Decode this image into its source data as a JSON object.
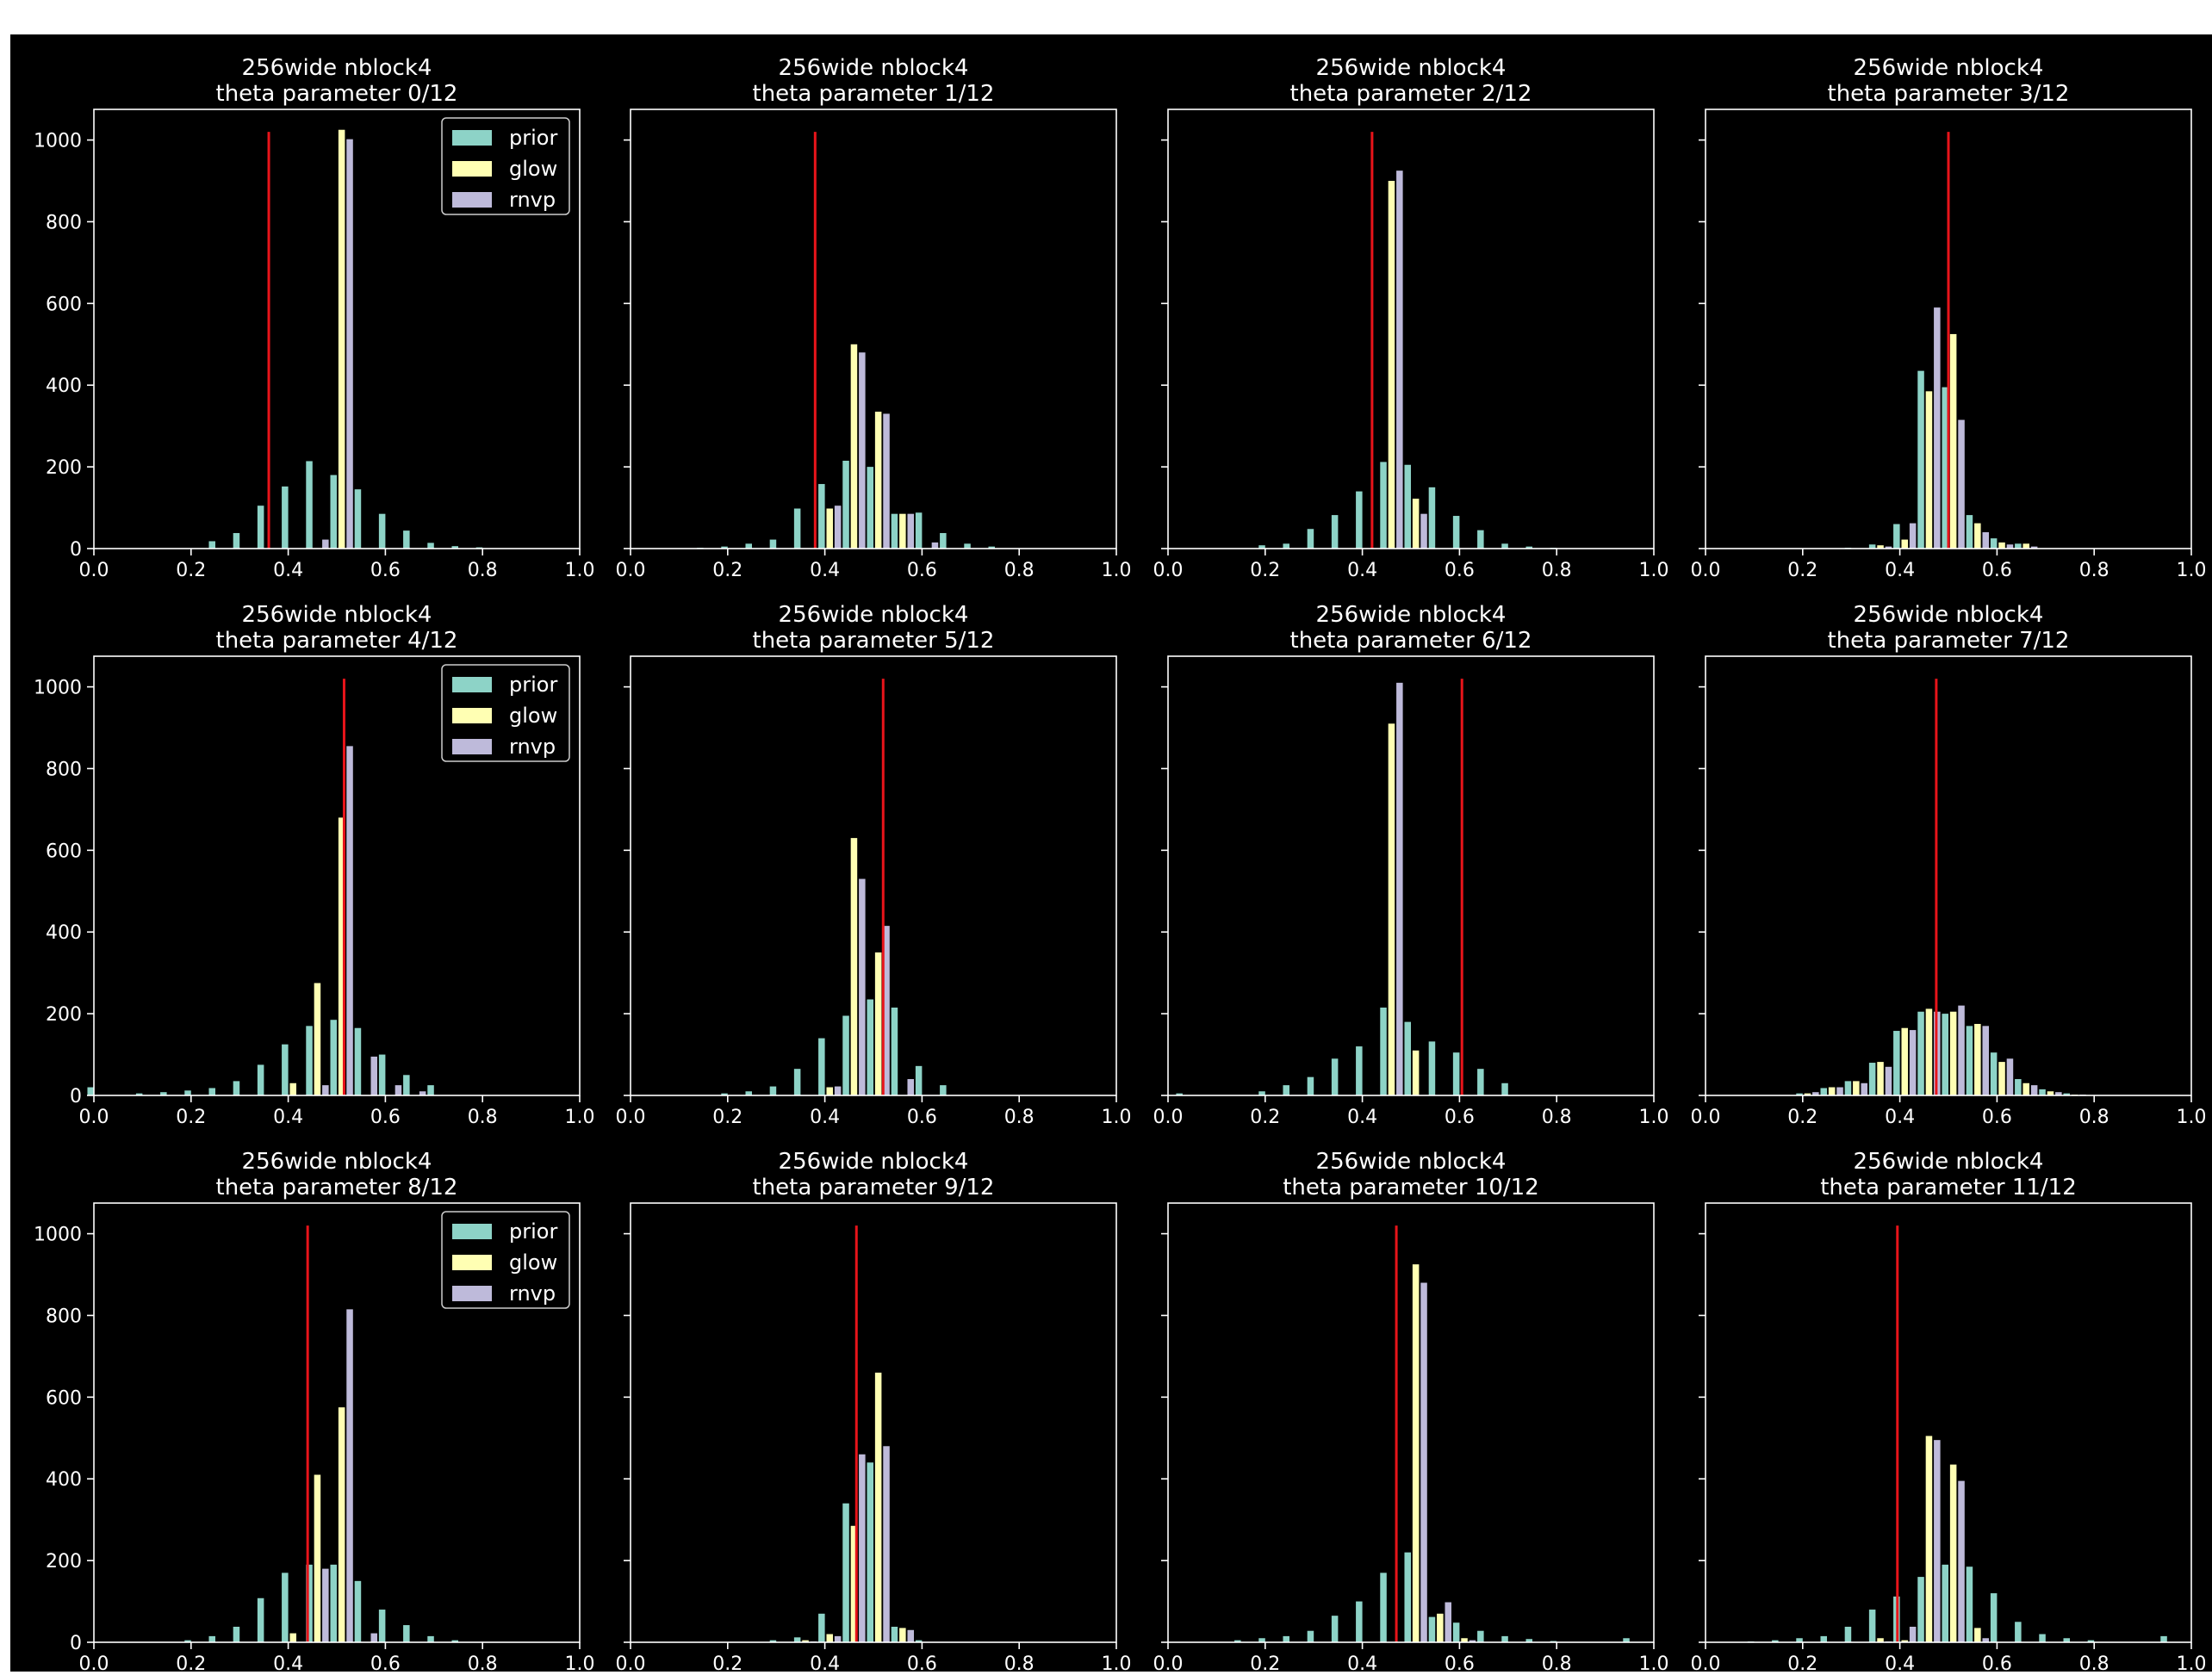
{
  "colors": {
    "background": "#000000",
    "page": "#ffffff",
    "axis": "#ffffff",
    "prior": "#8dd3c7",
    "glow": "#ffffb3",
    "rnvp": "#bebada",
    "truth_line": "#e8141a"
  },
  "chart_data": [
    {
      "type": "bar",
      "title": "256wide nblock4",
      "subtitle": "theta parameter 0/12",
      "xlim": [
        0,
        1
      ],
      "ylim": [
        0,
        1075
      ],
      "xticks": [
        "0.0",
        "0.2",
        "0.4",
        "0.6",
        "0.8",
        "1.0"
      ],
      "yticks": [
        "0",
        "200",
        "400",
        "600",
        "800",
        "1000"
      ],
      "legend": [
        "prior",
        "glow",
        "rnvp"
      ],
      "legend_position": "top-right",
      "truth": 0.36,
      "x": [
        0.26,
        0.31,
        0.36,
        0.41,
        0.46,
        0.51,
        0.56,
        0.61,
        0.66,
        0.71,
        0.76,
        0.81
      ],
      "series": [
        {
          "name": "prior",
          "values": [
            18,
            38,
            105,
            152,
            214,
            180,
            145,
            85,
            44,
            14,
            6,
            3
          ]
        },
        {
          "name": "glow",
          "values": [
            0,
            0,
            0,
            0,
            0,
            1025,
            0,
            0,
            0,
            0,
            0,
            0
          ]
        },
        {
          "name": "rnvp",
          "values": [
            0,
            0,
            0,
            0,
            22,
            1002,
            0,
            0,
            0,
            0,
            0,
            0
          ]
        }
      ]
    },
    {
      "type": "bar",
      "title": "256wide nblock4",
      "subtitle": "theta parameter 1/12",
      "xlim": [
        0,
        1
      ],
      "ylim": [
        0,
        1075
      ],
      "xticks": [
        "0.0",
        "0.2",
        "0.4",
        "0.6",
        "0.8",
        "1.0"
      ],
      "yticks": [
        "0",
        "200",
        "400",
        "600",
        "800",
        "1000"
      ],
      "truth": 0.38,
      "x": [
        0.16,
        0.21,
        0.26,
        0.31,
        0.36,
        0.41,
        0.46,
        0.51,
        0.56,
        0.61,
        0.66,
        0.71,
        0.76
      ],
      "series": [
        {
          "name": "prior",
          "values": [
            2,
            5,
            12,
            22,
            98,
            158,
            215,
            200,
            85,
            88,
            38,
            12,
            5
          ]
        },
        {
          "name": "glow",
          "values": [
            0,
            0,
            0,
            0,
            0,
            98,
            500,
            335,
            85,
            0,
            0,
            0,
            0
          ]
        },
        {
          "name": "rnvp",
          "values": [
            0,
            0,
            0,
            0,
            0,
            105,
            480,
            330,
            85,
            15,
            0,
            0,
            0
          ]
        }
      ]
    },
    {
      "type": "bar",
      "title": "256wide nblock4",
      "subtitle": "theta parameter 2/12",
      "xlim": [
        0,
        1
      ],
      "ylim": [
        0,
        1075
      ],
      "xticks": [
        "0.0",
        "0.2",
        "0.4",
        "0.6",
        "0.8",
        "1.0"
      ],
      "yticks": [
        "0",
        "200",
        "400",
        "600",
        "800",
        "1000"
      ],
      "truth": 0.42,
      "x": [
        0.21,
        0.26,
        0.31,
        0.36,
        0.41,
        0.46,
        0.51,
        0.56,
        0.61,
        0.66,
        0.71,
        0.76,
        0.81
      ],
      "series": [
        {
          "name": "prior",
          "values": [
            8,
            12,
            48,
            82,
            140,
            212,
            205,
            150,
            80,
            45,
            12,
            5,
            2
          ]
        },
        {
          "name": "glow",
          "values": [
            0,
            0,
            0,
            0,
            0,
            900,
            122,
            0,
            0,
            0,
            0,
            0,
            0
          ]
        },
        {
          "name": "rnvp",
          "values": [
            0,
            0,
            0,
            0,
            0,
            925,
            85,
            0,
            0,
            0,
            0,
            0,
            0
          ]
        }
      ]
    },
    {
      "type": "bar",
      "title": "256wide nblock4",
      "subtitle": "theta parameter 3/12",
      "xlim": [
        0,
        1
      ],
      "ylim": [
        0,
        1075
      ],
      "xticks": [
        "0.0",
        "0.2",
        "0.4",
        "0.6",
        "0.8",
        "1.0"
      ],
      "yticks": [
        "0",
        "200",
        "400",
        "600",
        "800",
        "1000"
      ],
      "truth": 0.5,
      "x": [
        0.31,
        0.36,
        0.41,
        0.46,
        0.51,
        0.56,
        0.61,
        0.66
      ],
      "series": [
        {
          "name": "prior",
          "values": [
            2,
            10,
            60,
            435,
            395,
            82,
            25,
            12
          ]
        },
        {
          "name": "glow",
          "values": [
            0,
            8,
            22,
            385,
            525,
            62,
            15,
            12
          ]
        },
        {
          "name": "rnvp",
          "values": [
            0,
            5,
            62,
            590,
            315,
            40,
            10,
            5
          ]
        }
      ]
    },
    {
      "type": "bar",
      "title": "256wide nblock4",
      "subtitle": "theta parameter 4/12",
      "xlim": [
        0,
        1
      ],
      "ylim": [
        0,
        1075
      ],
      "xticks": [
        "0.0",
        "0.2",
        "0.4",
        "0.6",
        "0.8",
        "1.0"
      ],
      "yticks": [
        "0",
        "200",
        "400",
        "600",
        "800",
        "1000"
      ],
      "legend": [
        "prior",
        "glow",
        "rnvp"
      ],
      "legend_position": "top-right",
      "truth": 0.515,
      "x": [
        0.01,
        0.11,
        0.16,
        0.21,
        0.26,
        0.31,
        0.36,
        0.41,
        0.46,
        0.51,
        0.56,
        0.61,
        0.66,
        0.71
      ],
      "series": [
        {
          "name": "prior",
          "values": [
            20,
            5,
            8,
            12,
            18,
            35,
            75,
            125,
            170,
            185,
            165,
            100,
            50,
            25
          ]
        },
        {
          "name": "glow",
          "values": [
            0,
            0,
            0,
            0,
            0,
            0,
            0,
            30,
            275,
            680,
            0,
            0,
            0,
            0
          ]
        },
        {
          "name": "rnvp",
          "values": [
            0,
            0,
            0,
            0,
            0,
            0,
            0,
            0,
            25,
            855,
            95,
            25,
            10,
            0
          ]
        }
      ]
    },
    {
      "type": "bar",
      "title": "256wide nblock4",
      "subtitle": "theta parameter 5/12",
      "xlim": [
        0,
        1
      ],
      "ylim": [
        0,
        1075
      ],
      "xticks": [
        "0.0",
        "0.2",
        "0.4",
        "0.6",
        "0.8",
        "1.0"
      ],
      "yticks": [
        "0",
        "200",
        "400",
        "600",
        "800",
        "1000"
      ],
      "truth": 0.52,
      "x": [
        0.21,
        0.26,
        0.31,
        0.36,
        0.41,
        0.46,
        0.51,
        0.56,
        0.61,
        0.66
      ],
      "series": [
        {
          "name": "prior",
          "values": [
            5,
            10,
            22,
            65,
            140,
            195,
            235,
            215,
            72,
            25
          ]
        },
        {
          "name": "glow",
          "values": [
            0,
            0,
            0,
            0,
            20,
            630,
            350,
            0,
            0,
            0
          ]
        },
        {
          "name": "rnvp",
          "values": [
            0,
            0,
            0,
            0,
            22,
            530,
            415,
            40,
            0,
            0
          ]
        }
      ]
    },
    {
      "type": "bar",
      "title": "256wide nblock4",
      "subtitle": "theta parameter 6/12",
      "xlim": [
        0,
        1
      ],
      "ylim": [
        0,
        1075
      ],
      "xticks": [
        "0.0",
        "0.2",
        "0.4",
        "0.6",
        "0.8",
        "1.0"
      ],
      "yticks": [
        "0",
        "200",
        "400",
        "600",
        "800",
        "1000"
      ],
      "truth": 0.605,
      "x": [
        0.04,
        0.21,
        0.26,
        0.31,
        0.36,
        0.41,
        0.46,
        0.51,
        0.56,
        0.61,
        0.66,
        0.71
      ],
      "series": [
        {
          "name": "prior",
          "values": [
            5,
            10,
            25,
            45,
            90,
            120,
            215,
            180,
            132,
            105,
            65,
            30
          ]
        },
        {
          "name": "glow",
          "values": [
            0,
            0,
            0,
            0,
            0,
            0,
            910,
            110,
            0,
            0,
            0,
            0
          ]
        },
        {
          "name": "rnvp",
          "values": [
            0,
            0,
            0,
            0,
            0,
            0,
            1010,
            0,
            0,
            0,
            0,
            0
          ]
        }
      ]
    },
    {
      "type": "bar",
      "title": "256wide nblock4",
      "subtitle": "theta parameter 7/12",
      "xlim": [
        0,
        1
      ],
      "ylim": [
        0,
        1075
      ],
      "xticks": [
        "0.0",
        "0.2",
        "0.4",
        "0.6",
        "0.8",
        "1.0"
      ],
      "yticks": [
        "0",
        "200",
        "400",
        "600",
        "800",
        "1000"
      ],
      "truth": 0.475,
      "x": [
        0.21,
        0.26,
        0.31,
        0.36,
        0.41,
        0.46,
        0.51,
        0.56,
        0.61,
        0.66,
        0.71,
        0.76
      ],
      "series": [
        {
          "name": "prior",
          "values": [
            5,
            18,
            35,
            80,
            158,
            205,
            200,
            170,
            105,
            40,
            15,
            5
          ]
        },
        {
          "name": "glow",
          "values": [
            5,
            20,
            35,
            82,
            165,
            212,
            205,
            175,
            82,
            30,
            10,
            2
          ]
        },
        {
          "name": "rnvp",
          "values": [
            8,
            20,
            30,
            70,
            160,
            205,
            220,
            170,
            90,
            25,
            8,
            2
          ]
        }
      ]
    },
    {
      "type": "bar",
      "title": "256wide nblock4",
      "subtitle": "theta parameter 8/12",
      "xlim": [
        0,
        1
      ],
      "ylim": [
        0,
        1075
      ],
      "xticks": [
        "0.0",
        "0.2",
        "0.4",
        "0.6",
        "0.8",
        "1.0"
      ],
      "yticks": [
        "0",
        "200",
        "400",
        "600",
        "800",
        "1000"
      ],
      "legend": [
        "prior",
        "glow",
        "rnvp"
      ],
      "legend_position": "top-right",
      "truth": 0.44,
      "x": [
        0.21,
        0.26,
        0.31,
        0.36,
        0.41,
        0.46,
        0.51,
        0.56,
        0.61,
        0.66,
        0.71,
        0.76
      ],
      "series": [
        {
          "name": "prior",
          "values": [
            5,
            15,
            38,
            108,
            170,
            190,
            190,
            150,
            80,
            42,
            15,
            5
          ]
        },
        {
          "name": "glow",
          "values": [
            0,
            0,
            0,
            0,
            22,
            410,
            575,
            0,
            0,
            0,
            0,
            0
          ]
        },
        {
          "name": "rnvp",
          "values": [
            0,
            0,
            0,
            0,
            0,
            180,
            815,
            22,
            0,
            0,
            0,
            0
          ]
        }
      ]
    },
    {
      "type": "bar",
      "title": "256wide nblock4",
      "subtitle": "theta parameter 9/12",
      "xlim": [
        0,
        1
      ],
      "ylim": [
        0,
        1075
      ],
      "xticks": [
        "0.0",
        "0.2",
        "0.4",
        "0.6",
        "0.8",
        "1.0"
      ],
      "yticks": [
        "0",
        "200",
        "400",
        "600",
        "800",
        "1000"
      ],
      "truth": 0.465,
      "x": [
        0.31,
        0.36,
        0.41,
        0.46,
        0.51,
        0.56,
        0.61
      ],
      "series": [
        {
          "name": "prior",
          "values": [
            5,
            12,
            70,
            340,
            440,
            38,
            5
          ]
        },
        {
          "name": "glow",
          "values": [
            0,
            5,
            20,
            285,
            660,
            35,
            0
          ]
        },
        {
          "name": "rnvp",
          "values": [
            0,
            2,
            15,
            460,
            480,
            30,
            0
          ]
        }
      ]
    },
    {
      "type": "bar",
      "title": "256wide nblock4",
      "subtitle": "theta parameter 10/12",
      "xlim": [
        0,
        1
      ],
      "ylim": [
        0,
        1075
      ],
      "xticks": [
        "0.0",
        "0.2",
        "0.4",
        "0.6",
        "0.8",
        "1.0"
      ],
      "yticks": [
        "0",
        "200",
        "400",
        "600",
        "800",
        "1000"
      ],
      "truth": 0.47,
      "x": [
        0.16,
        0.21,
        0.26,
        0.31,
        0.36,
        0.41,
        0.46,
        0.51,
        0.56,
        0.61,
        0.66,
        0.71,
        0.76,
        0.81,
        0.96
      ],
      "series": [
        {
          "name": "prior",
          "values": [
            5,
            10,
            15,
            28,
            65,
            100,
            170,
            220,
            62,
            48,
            28,
            15,
            8,
            3,
            10
          ]
        },
        {
          "name": "glow",
          "values": [
            0,
            0,
            0,
            0,
            0,
            0,
            0,
            925,
            70,
            10,
            0,
            0,
            0,
            0,
            0
          ]
        },
        {
          "name": "rnvp",
          "values": [
            0,
            0,
            0,
            0,
            0,
            0,
            0,
            880,
            98,
            5,
            0,
            0,
            0,
            0,
            0
          ]
        }
      ]
    },
    {
      "type": "bar",
      "title": "256wide nblock4",
      "subtitle": "theta parameter 11/12",
      "xlim": [
        0,
        1
      ],
      "ylim": [
        0,
        1075
      ],
      "xticks": [
        "0.0",
        "0.2",
        "0.4",
        "0.6",
        "0.8",
        "1.0"
      ],
      "yticks": [
        "0",
        "200",
        "400",
        "600",
        "800",
        "1000"
      ],
      "truth": 0.395,
      "x": [
        0.11,
        0.16,
        0.21,
        0.26,
        0.31,
        0.36,
        0.41,
        0.46,
        0.51,
        0.56,
        0.61,
        0.66,
        0.71,
        0.76,
        0.81,
        0.96
      ],
      "series": [
        {
          "name": "prior",
          "values": [
            2,
            5,
            10,
            15,
            38,
            80,
            112,
            160,
            190,
            185,
            120,
            50,
            20,
            10,
            5,
            15
          ]
        },
        {
          "name": "glow",
          "values": [
            0,
            0,
            0,
            0,
            0,
            10,
            5,
            505,
            435,
            35,
            0,
            0,
            0,
            0,
            0,
            0
          ]
        },
        {
          "name": "rnvp",
          "values": [
            0,
            0,
            0,
            0,
            0,
            2,
            38,
            495,
            395,
            10,
            0,
            0,
            0,
            0,
            0,
            0
          ]
        }
      ]
    }
  ]
}
